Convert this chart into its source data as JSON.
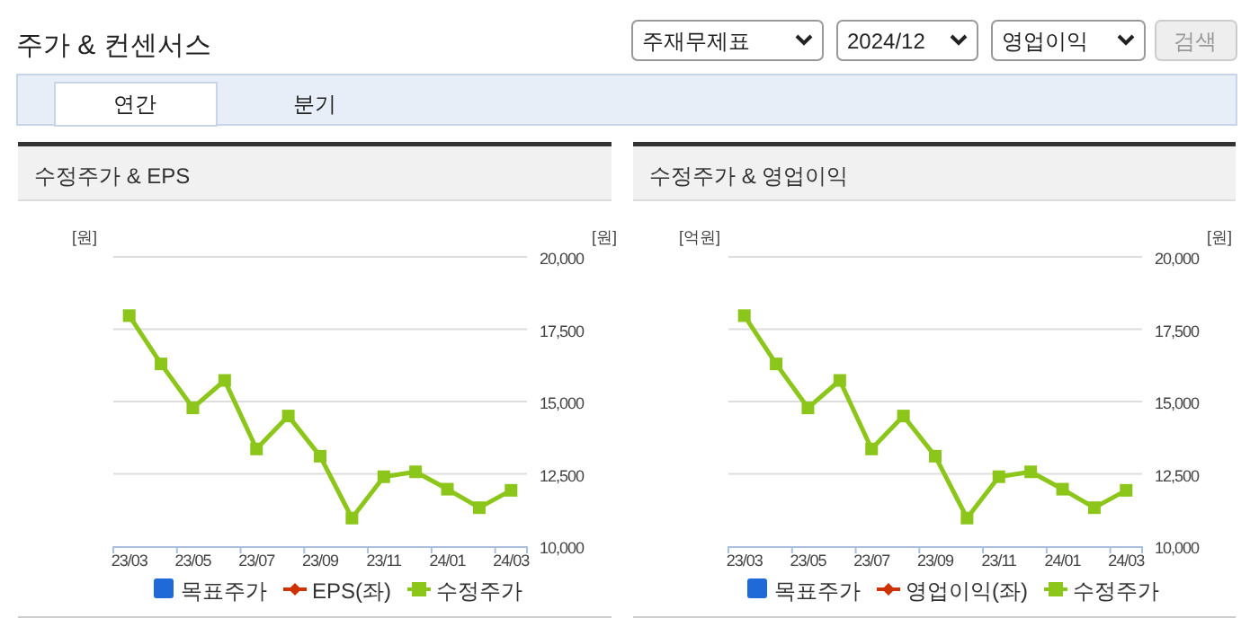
{
  "chart_data": [
    {
      "type": "other",
      "title": "주가 & 컨센서스",
      "annotations": [
        "주재무제표",
        "2024/12",
        "영업이익",
        "검색",
        "연간",
        "분기"
      ]
    },
    {
      "type": "line",
      "title": "수정주가 & EPS",
      "ylabel": "[원]",
      "y2label": "[원]",
      "categories": [
        "23/03",
        null,
        "23/05",
        null,
        "23/07",
        null,
        "23/09",
        null,
        "23/11",
        null,
        "24/01",
        null,
        "24/03"
      ],
      "y2lim": [
        10000,
        20000
      ],
      "y2ticks": [
        {
          "value": 10000,
          "label": "10,000"
        },
        {
          "value": 12500,
          "label": "12,500"
        },
        {
          "value": 15000,
          "label": "15,000"
        },
        {
          "value": 17500,
          "label": "17,500"
        },
        {
          "value": 20000,
          "label": "20,000"
        }
      ],
      "grid": "y",
      "legend": "bottom",
      "series": [
        {
          "name": "목표주가",
          "type": "bar",
          "color": "#1f6ad8",
          "values": [
            null,
            null,
            null,
            null,
            null,
            null,
            null,
            null,
            null,
            null,
            null,
            null,
            null
          ]
        },
        {
          "name": "EPS(좌)",
          "type": "line",
          "marker": "diamond",
          "color": "#cc3300",
          "values": [
            null,
            null,
            null,
            null,
            null,
            null,
            null,
            null,
            null,
            null,
            null,
            null,
            null
          ]
        },
        {
          "name": "수정주가",
          "type": "line",
          "marker": "square",
          "axis": "y2",
          "color": "#8cc61a",
          "values": [
            17970,
            16300,
            14780,
            15730,
            13360,
            14500,
            13110,
            10970,
            12400,
            12570,
            11970,
            11330,
            11930
          ]
        }
      ]
    },
    {
      "type": "line",
      "title": "수정주가 & 영업이익",
      "ylabel": "[억원]",
      "y2label": "[원]",
      "categories": [
        "23/03",
        null,
        "23/05",
        null,
        "23/07",
        null,
        "23/09",
        null,
        "23/11",
        null,
        "24/01",
        null,
        "24/03"
      ],
      "y2lim": [
        10000,
        20000
      ],
      "y2ticks": [
        {
          "value": 10000,
          "label": "10,000"
        },
        {
          "value": 12500,
          "label": "12,500"
        },
        {
          "value": 15000,
          "label": "15,000"
        },
        {
          "value": 17500,
          "label": "17,500"
        },
        {
          "value": 20000,
          "label": "20,000"
        }
      ],
      "grid": "y",
      "legend": "bottom",
      "series": [
        {
          "name": "목표주가",
          "type": "bar",
          "color": "#1f6ad8",
          "values": [
            null,
            null,
            null,
            null,
            null,
            null,
            null,
            null,
            null,
            null,
            null,
            null,
            null
          ]
        },
        {
          "name": "영업이익(좌)",
          "type": "line",
          "marker": "diamond",
          "color": "#cc3300",
          "values": [
            null,
            null,
            null,
            null,
            null,
            null,
            null,
            null,
            null,
            null,
            null,
            null,
            null
          ]
        },
        {
          "name": "수정주가",
          "type": "line",
          "marker": "square",
          "axis": "y2",
          "color": "#8cc61a",
          "values": [
            17970,
            16300,
            14780,
            15730,
            13360,
            14500,
            13110,
            10970,
            12400,
            12570,
            11970,
            11330,
            11930
          ]
        }
      ]
    }
  ]
}
